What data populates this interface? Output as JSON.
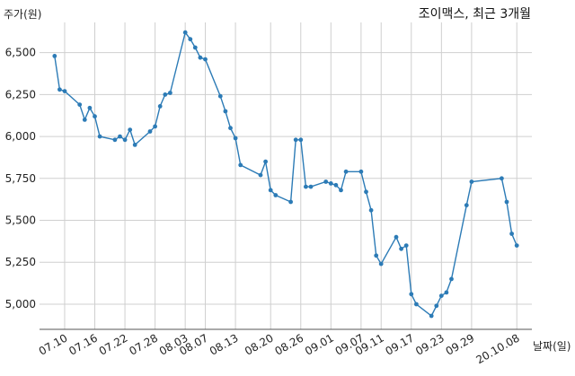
{
  "chart_data": {
    "type": "line",
    "title": "조이맥스, 최근 3개월",
    "xlabel": "날짜(일)",
    "ylabel": "주가(원)",
    "ylim": [
      4850,
      6680
    ],
    "y_ticks": [
      5000,
      5250,
      5500,
      5750,
      6000,
      6250,
      6500
    ],
    "y_tick_labels": [
      "5,000",
      "5,250",
      "5,500",
      "5,750",
      "6,000",
      "6,250",
      "6,500"
    ],
    "x_tick_labels": [
      "07.10",
      "07.16",
      "07.22",
      "07.28",
      "08.03",
      "08.07",
      "08.13",
      "08.20",
      "08.26",
      "09.01",
      "09.07",
      "09.11",
      "09.17",
      "09.23",
      "09.29",
      "20.10.08"
    ],
    "x_tick_dates": [
      "2020-07-10",
      "2020-07-16",
      "2020-07-22",
      "2020-07-28",
      "2020-08-03",
      "2020-08-07",
      "2020-08-13",
      "2020-08-20",
      "2020-08-26",
      "2020-09-01",
      "2020-09-07",
      "2020-09-11",
      "2020-09-17",
      "2020-09-23",
      "2020-09-29",
      "2020-10-08"
    ],
    "grid": true,
    "color": "#2c7bb6",
    "series": [
      {
        "x": [
          "2020-07-08",
          "2020-07-09",
          "2020-07-10",
          "2020-07-13",
          "2020-07-14",
          "2020-07-15",
          "2020-07-16",
          "2020-07-17",
          "2020-07-20",
          "2020-07-21",
          "2020-07-22",
          "2020-07-23",
          "2020-07-24",
          "2020-07-27",
          "2020-07-28",
          "2020-07-29",
          "2020-07-30",
          "2020-07-31",
          "2020-08-03",
          "2020-08-04",
          "2020-08-05",
          "2020-08-06",
          "2020-08-07",
          "2020-08-10",
          "2020-08-11",
          "2020-08-12",
          "2020-08-13",
          "2020-08-14",
          "2020-08-18",
          "2020-08-19",
          "2020-08-20",
          "2020-08-21",
          "2020-08-24",
          "2020-08-25",
          "2020-08-26",
          "2020-08-27",
          "2020-08-28",
          "2020-08-31",
          "2020-09-01",
          "2020-09-02",
          "2020-09-03",
          "2020-09-04",
          "2020-09-07",
          "2020-09-08",
          "2020-09-09",
          "2020-09-10",
          "2020-09-11",
          "2020-09-14",
          "2020-09-15",
          "2020-09-16",
          "2020-09-17",
          "2020-09-18",
          "2020-09-21",
          "2020-09-22",
          "2020-09-23",
          "2020-09-24",
          "2020-09-25",
          "2020-09-28",
          "2020-09-29",
          "2020-10-05",
          "2020-10-06",
          "2020-10-07",
          "2020-10-08"
        ],
        "y": [
          6480,
          6280,
          6270,
          6190,
          6100,
          6170,
          6120,
          6000,
          5980,
          6000,
          5980,
          6040,
          5950,
          6030,
          6060,
          6180,
          6250,
          6260,
          6620,
          6580,
          6530,
          6470,
          6460,
          6240,
          6150,
          6050,
          5990,
          5830,
          5770,
          5850,
          5680,
          5650,
          5610,
          5980,
          5980,
          5700,
          5700,
          5730,
          5720,
          5710,
          5680,
          5790,
          5790,
          5670,
          5560,
          5290,
          5240,
          5400,
          5330,
          5350,
          5060,
          5000,
          4930,
          4990,
          5050,
          5070,
          5150,
          5590,
          5730,
          5750,
          5610,
          5420,
          5350
        ]
      }
    ]
  }
}
